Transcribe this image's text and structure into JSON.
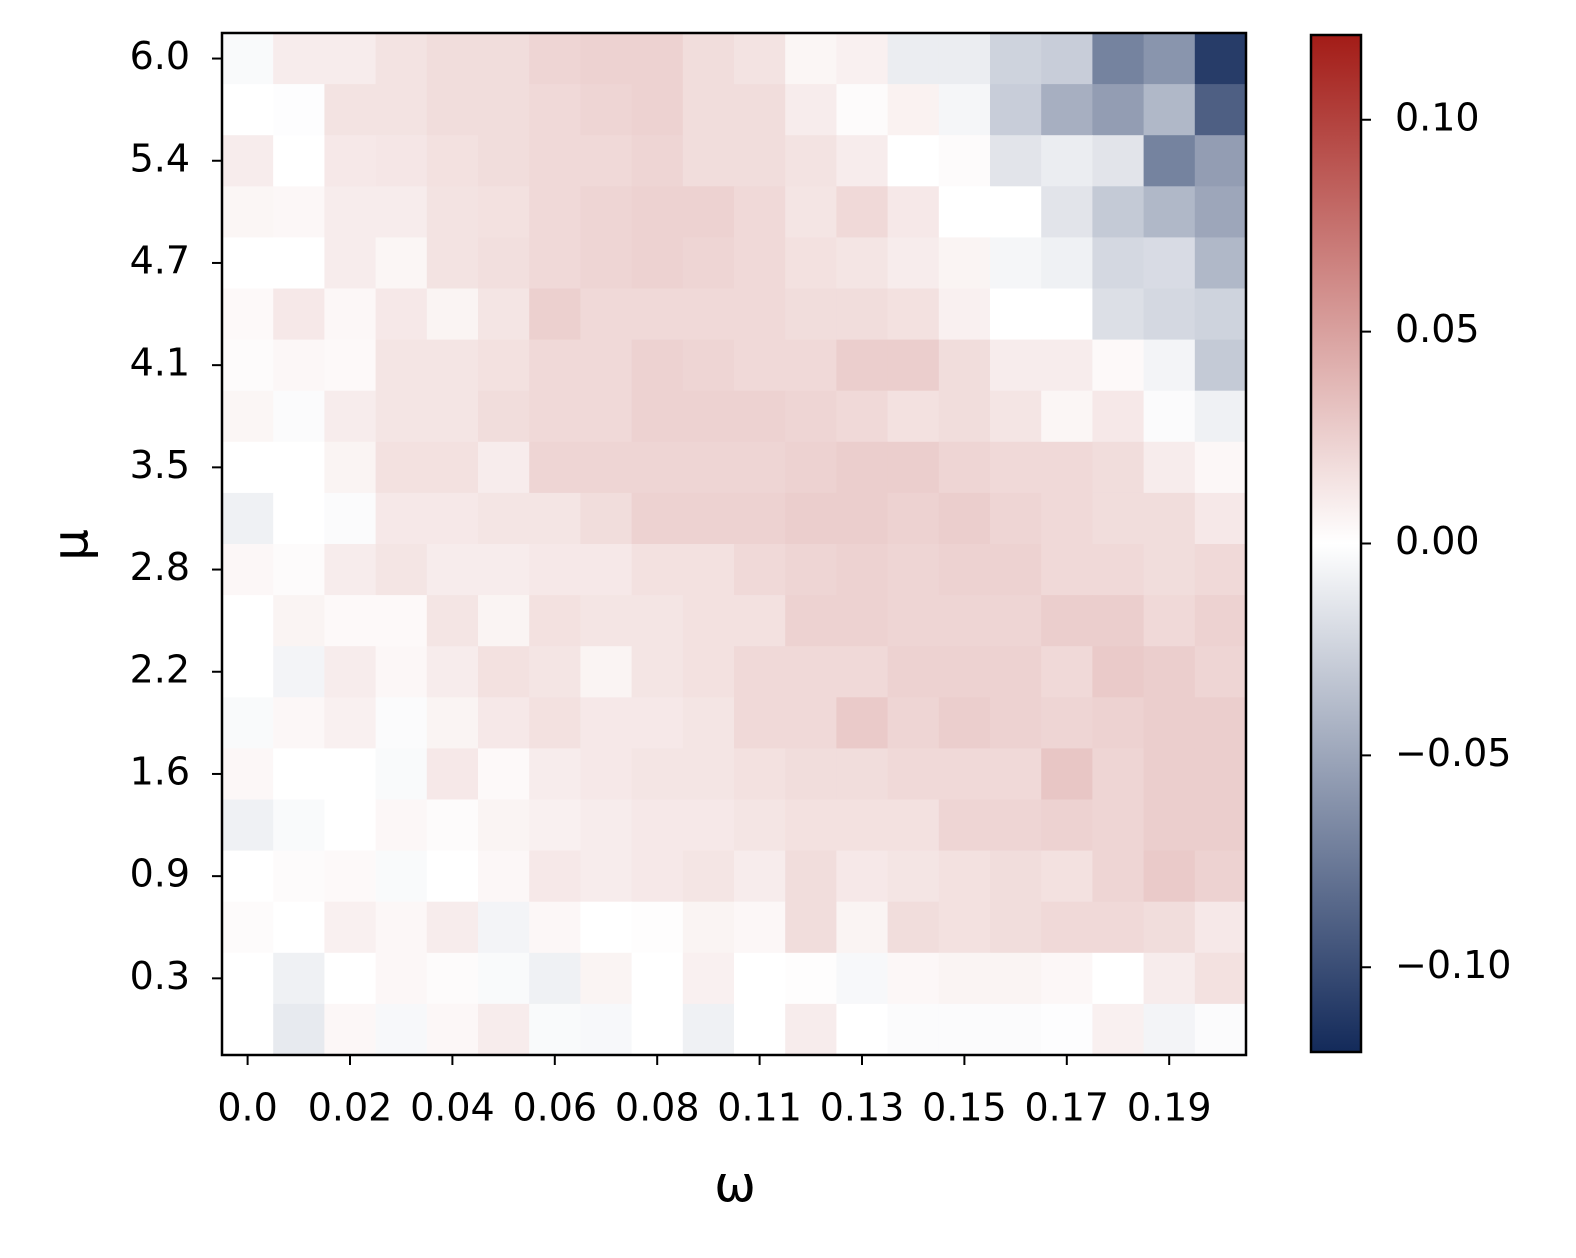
{
  "chart_data": {
    "type": "heatmap",
    "x_label": "ω",
    "y_label": "μ",
    "x_categories": [
      "0.0",
      null,
      "0.02",
      null,
      "0.04",
      null,
      "0.06",
      null,
      "0.08",
      null,
      "0.11",
      null,
      "0.13",
      null,
      "0.15",
      null,
      "0.17",
      null,
      "0.19",
      null
    ],
    "y_categories": [
      "6.0",
      null,
      "5.4",
      null,
      "4.7",
      null,
      "4.1",
      null,
      "3.5",
      null,
      "2.8",
      null,
      "2.2",
      null,
      "1.6",
      null,
      "0.9",
      null,
      "0.3",
      null
    ],
    "z": [
      [
        -0.003,
        0.01,
        0.01,
        0.015,
        0.018,
        0.018,
        0.022,
        0.024,
        0.024,
        0.018,
        0.015,
        0.005,
        0.008,
        -0.01,
        -0.01,
        -0.025,
        -0.028,
        -0.07,
        -0.06,
        -0.11
      ],
      [
        0.0,
        -0.001,
        0.015,
        0.015,
        0.018,
        0.018,
        0.02,
        0.022,
        0.024,
        0.018,
        0.018,
        0.01,
        0.002,
        0.007,
        -0.005,
        -0.028,
        -0.045,
        -0.055,
        -0.04,
        -0.09
      ],
      [
        0.01,
        0.0,
        0.012,
        0.013,
        0.016,
        0.018,
        0.02,
        0.02,
        0.022,
        0.018,
        0.018,
        0.015,
        0.01,
        0.0,
        0.002,
        -0.015,
        -0.01,
        -0.015,
        -0.07,
        -0.055
      ],
      [
        0.005,
        0.004,
        0.01,
        0.01,
        0.015,
        0.016,
        0.02,
        0.022,
        0.024,
        0.024,
        0.02,
        0.014,
        0.02,
        0.012,
        0.0,
        0.0,
        -0.015,
        -0.03,
        -0.04,
        -0.05
      ],
      [
        0.0,
        0.0,
        0.01,
        0.005,
        0.015,
        0.017,
        0.02,
        0.022,
        0.024,
        0.022,
        0.02,
        0.016,
        0.014,
        0.01,
        0.006,
        -0.005,
        -0.008,
        -0.022,
        -0.02,
        -0.04
      ],
      [
        0.003,
        0.012,
        0.004,
        0.012,
        0.006,
        0.014,
        0.025,
        0.02,
        0.02,
        0.02,
        0.02,
        0.018,
        0.018,
        0.016,
        0.008,
        0.0,
        0.0,
        -0.018,
        -0.022,
        -0.025
      ],
      [
        0.002,
        0.004,
        0.003,
        0.014,
        0.014,
        0.016,
        0.02,
        0.02,
        0.024,
        0.022,
        0.02,
        0.02,
        0.026,
        0.026,
        0.018,
        0.01,
        0.01,
        0.003,
        -0.006,
        -0.03
      ],
      [
        0.005,
        -0.002,
        0.01,
        0.014,
        0.014,
        0.018,
        0.02,
        0.02,
        0.024,
        0.024,
        0.024,
        0.022,
        0.02,
        0.016,
        0.018,
        0.014,
        0.005,
        0.012,
        -0.002,
        -0.008
      ],
      [
        0.0,
        0.0,
        0.006,
        0.016,
        0.016,
        0.01,
        0.022,
        0.022,
        0.022,
        0.022,
        0.022,
        0.024,
        0.026,
        0.026,
        0.022,
        0.02,
        0.02,
        0.018,
        0.01,
        0.004
      ],
      [
        -0.008,
        0.0,
        -0.002,
        0.012,
        0.012,
        0.014,
        0.014,
        0.018,
        0.024,
        0.024,
        0.024,
        0.026,
        0.026,
        0.024,
        0.026,
        0.022,
        0.02,
        0.018,
        0.018,
        0.012
      ],
      [
        0.004,
        0.002,
        0.01,
        0.014,
        0.01,
        0.01,
        0.012,
        0.012,
        0.016,
        0.016,
        0.02,
        0.022,
        0.024,
        0.022,
        0.024,
        0.024,
        0.02,
        0.02,
        0.018,
        0.02
      ],
      [
        0.0,
        0.006,
        0.003,
        0.003,
        0.014,
        0.006,
        0.016,
        0.014,
        0.014,
        0.016,
        0.016,
        0.024,
        0.024,
        0.022,
        0.022,
        0.022,
        0.026,
        0.026,
        0.02,
        0.024
      ],
      [
        0.0,
        -0.006,
        0.01,
        0.004,
        0.01,
        0.016,
        0.014,
        0.006,
        0.014,
        0.016,
        0.02,
        0.02,
        0.02,
        0.024,
        0.024,
        0.024,
        0.02,
        0.028,
        0.026,
        0.022
      ],
      [
        -0.003,
        0.004,
        0.008,
        -0.002,
        0.006,
        0.012,
        0.016,
        0.012,
        0.012,
        0.014,
        0.02,
        0.02,
        0.028,
        0.022,
        0.026,
        0.024,
        0.022,
        0.024,
        0.026,
        0.026
      ],
      [
        0.004,
        0.0,
        0.0,
        -0.003,
        0.012,
        0.003,
        0.01,
        0.012,
        0.014,
        0.014,
        0.016,
        0.018,
        0.018,
        0.02,
        0.02,
        0.02,
        0.03,
        0.022,
        0.026,
        0.026
      ],
      [
        -0.008,
        -0.003,
        0.0,
        0.004,
        0.002,
        0.006,
        0.008,
        0.01,
        0.012,
        0.012,
        0.014,
        0.016,
        0.016,
        0.016,
        0.022,
        0.022,
        0.024,
        0.022,
        0.026,
        0.026
      ],
      [
        0.0,
        0.002,
        0.003,
        -0.003,
        0.0,
        0.004,
        0.012,
        0.01,
        0.012,
        0.014,
        0.01,
        0.018,
        0.012,
        0.014,
        0.016,
        0.018,
        0.016,
        0.022,
        0.028,
        0.024
      ],
      [
        0.002,
        0.0,
        0.008,
        0.004,
        0.01,
        -0.006,
        0.004,
        0.0,
        0.001,
        0.006,
        0.004,
        0.018,
        0.006,
        0.018,
        0.016,
        0.018,
        0.02,
        0.02,
        0.018,
        0.012
      ],
      [
        0.0,
        -0.008,
        0.0,
        0.004,
        0.002,
        -0.003,
        -0.008,
        0.006,
        0.0,
        0.008,
        0.0,
        0.001,
        -0.004,
        0.004,
        0.006,
        0.006,
        0.004,
        0.0,
        0.01,
        0.016
      ],
      [
        0.0,
        -0.012,
        0.004,
        -0.004,
        0.004,
        0.01,
        -0.003,
        -0.004,
        0.0,
        -0.008,
        0.0,
        0.01,
        0.0,
        -0.002,
        -0.002,
        -0.002,
        -0.001,
        0.008,
        -0.006,
        -0.002
      ]
    ],
    "colormap": [
      "#132a5a",
      "#ffffff",
      "#a31c17"
    ],
    "clim": [
      -0.12,
      0.12
    ],
    "cbar_ticks": [
      {
        "value": 0.1,
        "label": "0.10"
      },
      {
        "value": 0.05,
        "label": "0.05"
      },
      {
        "value": 0,
        "label": "0.00"
      },
      {
        "value": -0.05,
        "label": "−0.05"
      },
      {
        "value": -0.1,
        "label": "−0.10"
      }
    ]
  }
}
